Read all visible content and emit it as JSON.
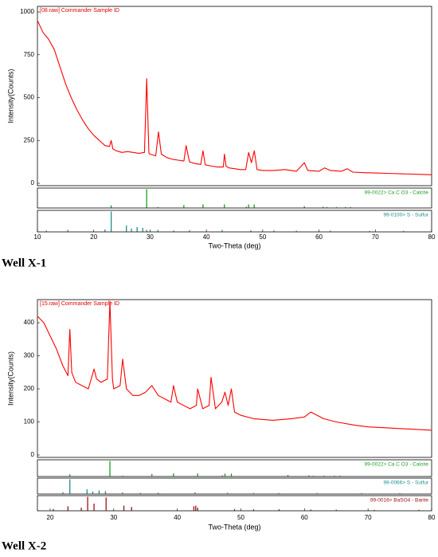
{
  "chart_data": [
    {
      "type": "line",
      "title": "[08.raw] Commander Sample ID",
      "xlabel": "Two-Theta (deg)",
      "ylabel": "Intensity(Counts)",
      "caption": "Well X-1",
      "xlim": [
        10,
        80
      ],
      "xticks": [
        10,
        20,
        30,
        40,
        50,
        60,
        70,
        80
      ],
      "ylim": [
        0,
        1000
      ],
      "yticks": [
        0,
        250,
        500,
        750,
        1000
      ],
      "color": "#ff0000",
      "x": [
        10,
        11,
        12,
        13,
        14,
        15,
        16,
        17,
        18,
        19,
        20,
        21,
        22,
        22.8,
        23.1,
        23.4,
        24,
        25,
        26,
        27,
        28,
        29,
        29.4,
        29.8,
        30,
        31,
        31.5,
        32,
        33,
        34,
        35,
        36,
        36.4,
        37,
        38,
        39,
        39.4,
        39.8,
        41,
        42,
        43,
        43.2,
        43.5,
        44,
        45,
        46,
        47,
        47.5,
        48,
        48.5,
        49,
        50,
        52,
        54,
        56,
        57.4,
        58,
        60,
        61,
        62,
        64,
        65,
        66,
        68,
        70,
        72,
        75,
        78,
        80
      ],
      "values": [
        950,
        880,
        840,
        780,
        680,
        580,
        500,
        430,
        370,
        320,
        280,
        250,
        220,
        215,
        250,
        200,
        190,
        180,
        185,
        180,
        175,
        180,
        610,
        175,
        170,
        160,
        300,
        170,
        150,
        140,
        135,
        130,
        220,
        125,
        115,
        110,
        190,
        108,
        100,
        95,
        95,
        170,
        100,
        90,
        85,
        80,
        80,
        180,
        120,
        190,
        80,
        75,
        75,
        80,
        70,
        120,
        75,
        70,
        90,
        75,
        70,
        85,
        65,
        62,
        60,
        58,
        55,
        52,
        50
      ],
      "reference_patterns": [
        {
          "name": "99-0022> Ca C O3 - Calcite",
          "color": "#1e9e1e",
          "x": [
            23.1,
            29.4,
            31.4,
            36.0,
            39.4,
            43.2,
            47.1,
            47.5,
            48.5,
            57.4,
            60.7,
            61.4,
            63.1,
            64.7,
            65.6
          ],
          "values": [
            12,
            100,
            3,
            14,
            18,
            18,
            5,
            17,
            17,
            8,
            5,
            3,
            3,
            3,
            3
          ]
        },
        {
          "name": "99-0100> S - Sulfur",
          "color": "#1a8f8f",
          "x": [
            11.6,
            15.4,
            22.0,
            23.1,
            25.8,
            26.7,
            27.7,
            28.7,
            29.4,
            31.4,
            34.2,
            37.0,
            42.8,
            47.9,
            52.0,
            56.0,
            62.0,
            69.0,
            75.0
          ],
          "values": [
            5,
            8,
            10,
            100,
            30,
            15,
            22,
            18,
            8,
            8,
            5,
            6,
            8,
            6,
            5,
            4,
            4,
            3,
            3
          ]
        }
      ]
    },
    {
      "type": "line",
      "title": "[15.raw] Commander Sample ID",
      "xlabel": "Two-Theta (deg)",
      "ylabel": "Intensity(Counts)",
      "caption": "Well X-2",
      "xlim": [
        18,
        80
      ],
      "xticks": [
        20,
        30,
        40,
        50,
        60,
        70,
        80
      ],
      "ylim": [
        0,
        470
      ],
      "yticks": [
        0,
        100,
        200,
        300,
        400
      ],
      "color": "#ff0000",
      "x": [
        18,
        19,
        20,
        21,
        22,
        22.8,
        23.1,
        23.4,
        24,
        25,
        26,
        26.9,
        27.3,
        28,
        29,
        29.4,
        29.8,
        30,
        31,
        31.4,
        32,
        33,
        34,
        35,
        36,
        37,
        38,
        39,
        39.4,
        40,
        41,
        42,
        43,
        43.2,
        44,
        45,
        45.3,
        46,
        47,
        47.5,
        48,
        48.5,
        49,
        50,
        52,
        55,
        58,
        60,
        61,
        63,
        65,
        68,
        70,
        75,
        80
      ],
      "values": [
        420,
        400,
        360,
        320,
        270,
        240,
        380,
        250,
        220,
        210,
        200,
        260,
        230,
        220,
        230,
        465,
        230,
        200,
        210,
        290,
        200,
        180,
        180,
        190,
        210,
        180,
        170,
        160,
        210,
        160,
        150,
        140,
        150,
        200,
        140,
        150,
        235,
        140,
        160,
        190,
        150,
        200,
        130,
        120,
        110,
        105,
        110,
        115,
        130,
        110,
        100,
        90,
        85,
        80,
        75
      ],
      "reference_patterns": [
        {
          "name": "99-0022> Ca C O3 - Calcite",
          "color": "#1e9e1e",
          "x": [
            23.1,
            29.4,
            31.4,
            36.0,
            39.4,
            43.2,
            47.1,
            47.5,
            48.5,
            57.4,
            60.7,
            61.4,
            63.1,
            64.7,
            65.6
          ],
          "values": [
            12,
            100,
            3,
            14,
            18,
            18,
            5,
            17,
            17,
            8,
            5,
            3,
            3,
            3,
            3
          ]
        },
        {
          "name": "99-0066> S - Sulfur",
          "color": "#1a8f8f",
          "x": [
            22.0,
            23.1,
            25.8,
            26.7,
            27.7,
            28.7,
            31.4,
            34.2,
            37.0,
            42.8,
            47.9,
            52.0,
            56.0,
            62.0,
            69.0,
            75.0
          ],
          "values": [
            10,
            100,
            30,
            15,
            22,
            18,
            8,
            5,
            6,
            8,
            6,
            5,
            4,
            4,
            3,
            3
          ]
        },
        {
          "name": "99-0016> BaSO4 - Barite",
          "color": "#a01010",
          "x": [
            20.5,
            22.8,
            24.9,
            25.9,
            26.9,
            28.8,
            31.6,
            32.8,
            42.6,
            42.9,
            43.2,
            49.0,
            52.0,
            56.0,
            61.0,
            65.0,
            71.0,
            78.0
          ],
          "values": [
            10,
            30,
            20,
            100,
            50,
            95,
            35,
            25,
            30,
            35,
            20,
            10,
            8,
            8,
            6,
            5,
            4,
            4
          ]
        }
      ]
    }
  ]
}
